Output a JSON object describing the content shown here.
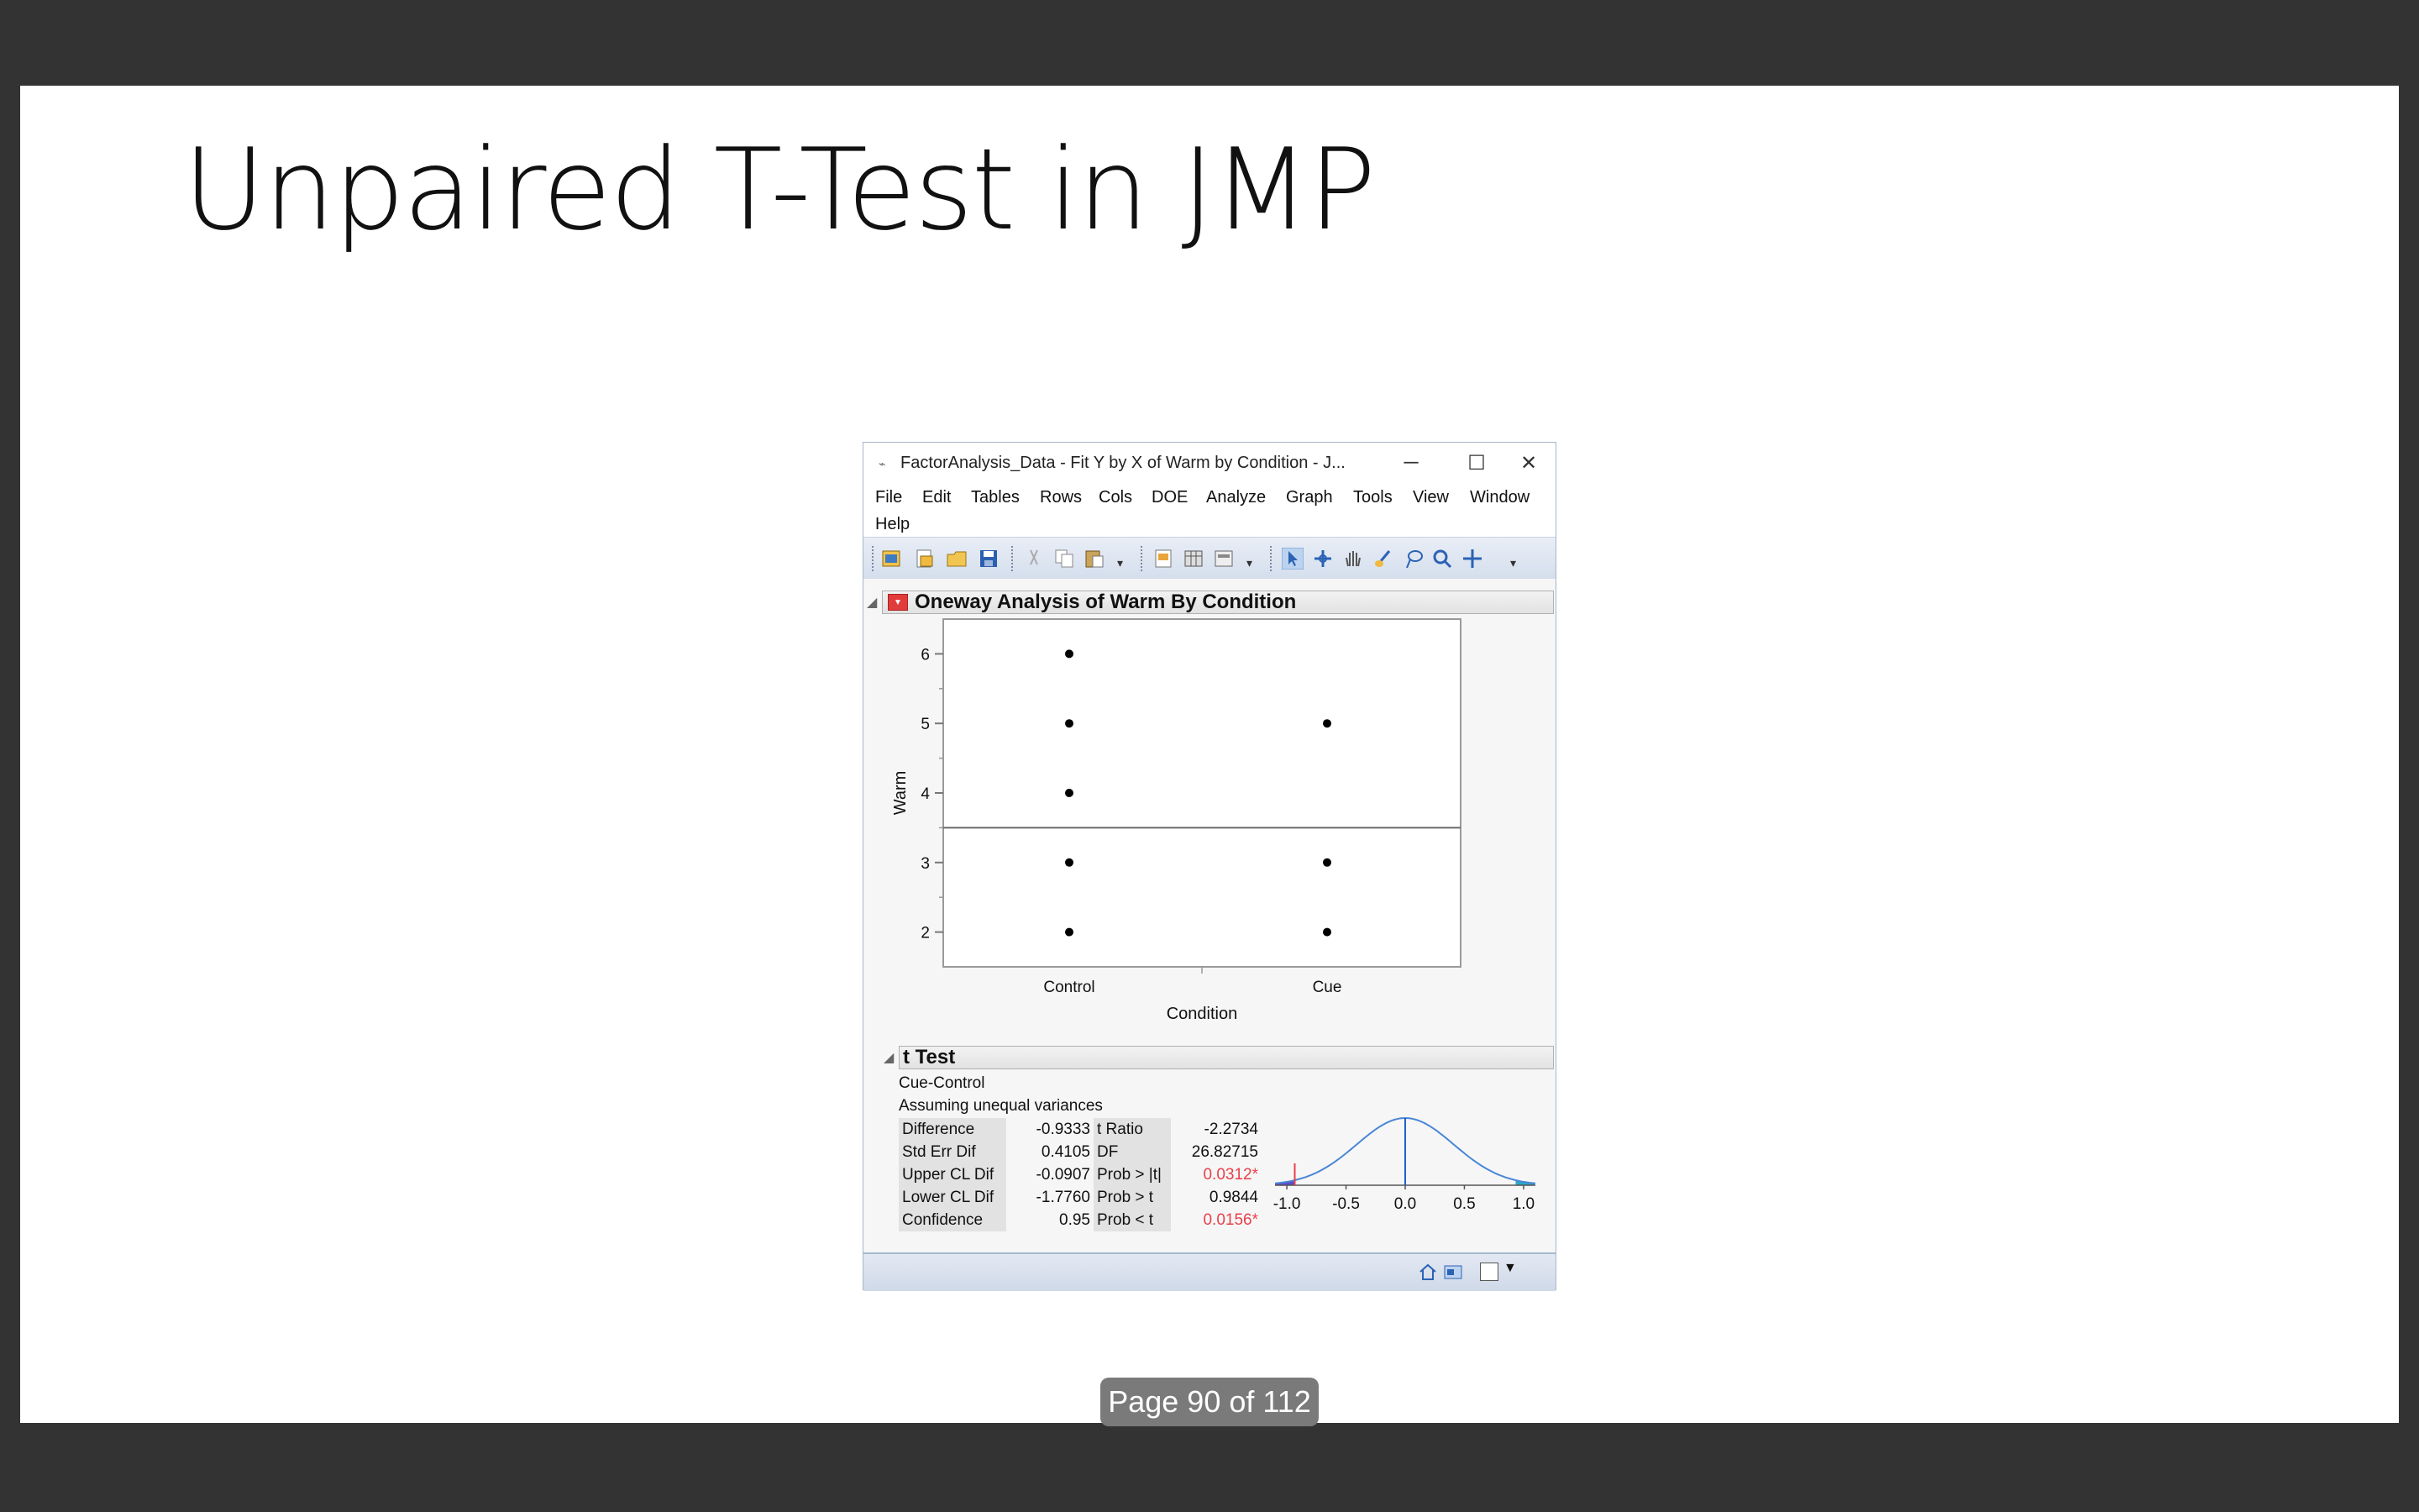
{
  "slide": {
    "title": "Unpaired T-Test in JMP",
    "page_indicator": "Page 90 of 112"
  },
  "window": {
    "title": "FactorAnalysis_Data - Fit Y by X of Warm by Condition - J...",
    "menu": [
      "File",
      "Edit",
      "Tables",
      "Rows",
      "Cols",
      "DOE",
      "Analyze",
      "Graph",
      "Tools",
      "View",
      "Window",
      "Help"
    ]
  },
  "oneway": {
    "header": "Oneway Analysis of Warm By Condition"
  },
  "chart_data": [
    {
      "type": "scatter",
      "xlabel": "Condition",
      "ylabel": "Warm",
      "categories": [
        "Control",
        "Cue"
      ],
      "ylim": [
        1.5,
        6.5
      ],
      "yticks": [
        2,
        3,
        4,
        5,
        6
      ],
      "points": [
        {
          "x": "Control",
          "y": 6
        },
        {
          "x": "Control",
          "y": 5
        },
        {
          "x": "Control",
          "y": 4
        },
        {
          "x": "Control",
          "y": 3
        },
        {
          "x": "Control",
          "y": 2
        },
        {
          "x": "Cue",
          "y": 5
        },
        {
          "x": "Cue",
          "y": 3
        },
        {
          "x": "Cue",
          "y": 2
        }
      ],
      "reference_line_y": 3.5
    },
    {
      "type": "line",
      "description_series": "t distribution density",
      "xlim": [
        -1.1,
        1.1
      ],
      "xticks": [
        "-1.0",
        "-0.5",
        "0.0",
        "0.5",
        "1.0"
      ],
      "observed_difference": -0.9333
    }
  ],
  "ttest": {
    "header": "t Test",
    "comparison": "Cue-Control",
    "assumption": "Assuming unequal variances",
    "rows": [
      {
        "label": "Difference",
        "value": "-0.9333",
        "label2": "t Ratio",
        "value2": "-2.2734",
        "sig": false
      },
      {
        "label": "Std Err Dif",
        "value": "0.4105",
        "label2": "DF",
        "value2": "26.82715",
        "sig": false
      },
      {
        "label": "Upper CL Dif",
        "value": "-0.0907",
        "label2": "Prob > |t|",
        "value2": "0.0312*",
        "sig": true
      },
      {
        "label": "Lower CL Dif",
        "value": "-1.7760",
        "label2": "Prob > t",
        "value2": "0.9844",
        "sig": false
      },
      {
        "label": "Confidence",
        "value": "0.95",
        "label2": "Prob < t",
        "value2": "0.0156*",
        "sig": true
      }
    ]
  },
  "colors": {
    "density_line": "#4a86d6",
    "significant": "#e8404a",
    "red_triangle": "#e23b3b"
  }
}
